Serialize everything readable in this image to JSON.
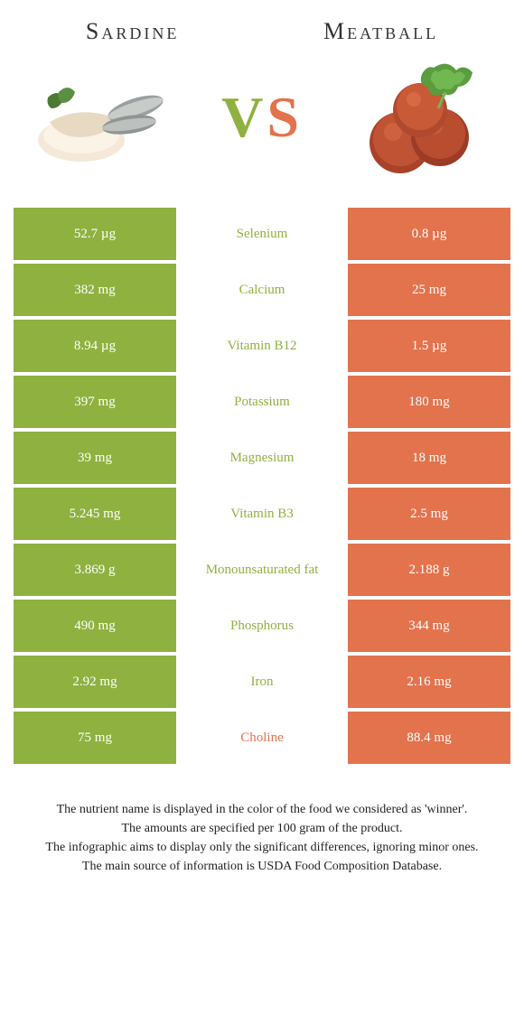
{
  "colors": {
    "left": "#8eb140",
    "right": "#e2734d",
    "mid_bg": "#ffffff"
  },
  "foods": {
    "left_name": "Sardine",
    "right_name": "Meatball"
  },
  "vs": {
    "v": "V",
    "s": "S"
  },
  "rows": [
    {
      "left": "52.7 µg",
      "mid": "Selenium",
      "right": "0.8 µg",
      "winner": "left"
    },
    {
      "left": "382 mg",
      "mid": "Calcium",
      "right": "25 mg",
      "winner": "left"
    },
    {
      "left": "8.94 µg",
      "mid": "Vitamin B12",
      "right": "1.5 µg",
      "winner": "left"
    },
    {
      "left": "397 mg",
      "mid": "Potassium",
      "right": "180 mg",
      "winner": "left"
    },
    {
      "left": "39 mg",
      "mid": "Magnesium",
      "right": "18 mg",
      "winner": "left"
    },
    {
      "left": "5.245 mg",
      "mid": "Vitamin B3",
      "right": "2.5 mg",
      "winner": "left"
    },
    {
      "left": "3.869 g",
      "mid": "Monounsaturated fat",
      "right": "2.188 g",
      "winner": "left"
    },
    {
      "left": "490 mg",
      "mid": "Phosphorus",
      "right": "344 mg",
      "winner": "left"
    },
    {
      "left": "2.92 mg",
      "mid": "Iron",
      "right": "2.16 mg",
      "winner": "left"
    },
    {
      "left": "75 mg",
      "mid": "Choline",
      "right": "88.4 mg",
      "winner": "right"
    }
  ],
  "footnotes": [
    "The nutrient name is displayed in the color of the food we considered as 'winner'.",
    "The amounts are specified per 100 gram of the product.",
    "The infographic aims to display only the significant differences, ignoring minor ones.",
    "The main source of information is USDA Food Composition Database."
  ]
}
